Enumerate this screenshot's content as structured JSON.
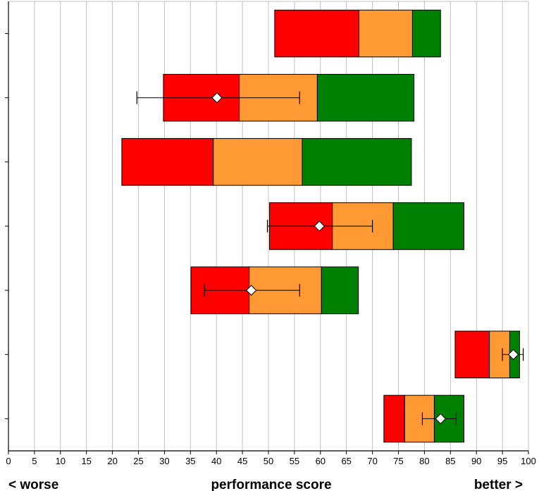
{
  "chart_data": {
    "type": "bar",
    "orientation": "horizontal",
    "subtype": "performance-band-with-markers",
    "xlim": [
      0,
      100
    ],
    "x_ticks": [
      0,
      5,
      10,
      15,
      20,
      25,
      30,
      35,
      40,
      45,
      50,
      55,
      60,
      65,
      70,
      75,
      80,
      85,
      90,
      95,
      100
    ],
    "grid": "vertical",
    "xlabel": "performance score",
    "left_label": "< worse",
    "right_label": "better >",
    "band_colors": {
      "low": "#ff0000",
      "mid": "#ff9933",
      "high": "#008000"
    },
    "marker_color": "#ffffff",
    "rows": [
      {
        "band_start": 51.2,
        "low_end": 67.4,
        "mid_end": 77.7,
        "band_end": 83.1,
        "marker": null,
        "whisker_low": null,
        "whisker_high": null
      },
      {
        "band_start": 29.8,
        "low_end": 44.4,
        "mid_end": 59.4,
        "band_end": 78.0,
        "marker": 40.1,
        "whisker_low": 24.7,
        "whisker_high": 56.0
      },
      {
        "band_start": 21.8,
        "low_end": 39.4,
        "mid_end": 56.5,
        "band_end": 77.5,
        "marker": null,
        "whisker_low": null,
        "whisker_high": null
      },
      {
        "band_start": 50.2,
        "low_end": 62.3,
        "mid_end": 74.0,
        "band_end": 87.6,
        "marker": 59.8,
        "whisker_low": 49.8,
        "whisker_high": 70.0
      },
      {
        "band_start": 35.1,
        "low_end": 46.3,
        "mid_end": 60.2,
        "band_end": 67.3,
        "marker": 46.7,
        "whisker_low": 37.7,
        "whisker_high": 56.0
      },
      {
        "band_start": 85.9,
        "low_end": 92.5,
        "mid_end": 96.4,
        "band_end": 98.3,
        "marker": 97.1,
        "whisker_low": 95.0,
        "whisker_high": 99.0
      },
      {
        "band_start": 72.2,
        "low_end": 76.2,
        "mid_end": 81.9,
        "band_end": 87.6,
        "marker": 83.1,
        "whisker_low": 79.6,
        "whisker_high": 86.1
      }
    ]
  }
}
